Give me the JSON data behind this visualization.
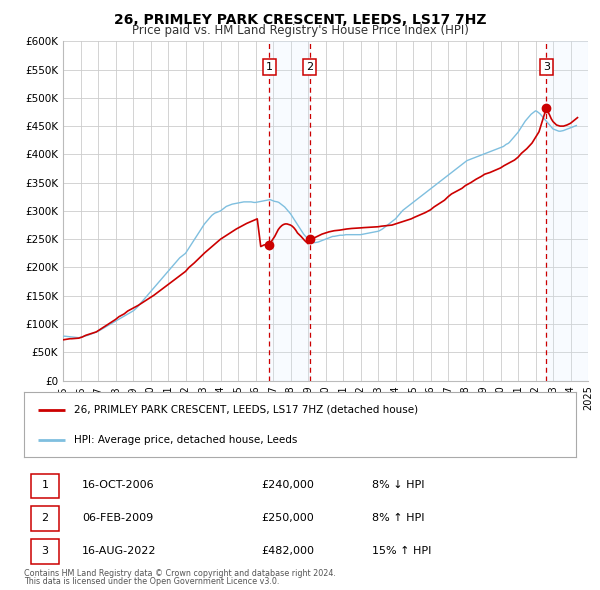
{
  "title": "26, PRIMLEY PARK CRESCENT, LEEDS, LS17 7HZ",
  "subtitle": "Price paid vs. HM Land Registry's House Price Index (HPI)",
  "xlim": [
    1995,
    2025
  ],
  "ylim": [
    0,
    600000
  ],
  "yticks": [
    0,
    50000,
    100000,
    150000,
    200000,
    250000,
    300000,
    350000,
    400000,
    450000,
    500000,
    550000,
    600000
  ],
  "ytick_labels": [
    "£0",
    "£50K",
    "£100K",
    "£150K",
    "£200K",
    "£250K",
    "£300K",
    "£350K",
    "£400K",
    "£450K",
    "£500K",
    "£550K",
    "£600K"
  ],
  "hpi_color": "#7fbfdf",
  "price_color": "#cc0000",
  "marker_color": "#cc0000",
  "bg_color": "#ffffff",
  "grid_color": "#cccccc",
  "transaction_line_color": "#cc0000",
  "shade_color": "#ddeeff",
  "transactions": [
    {
      "num": 1,
      "year": 2006.79,
      "price": 240000
    },
    {
      "num": 2,
      "year": 2009.1,
      "price": 250000
    },
    {
      "num": 3,
      "year": 2022.62,
      "price": 482000
    }
  ],
  "legend_label1": "26, PRIMLEY PARK CRESCENT, LEEDS, LS17 7HZ (detached house)",
  "legend_label2": "HPI: Average price, detached house, Leeds",
  "footer1": "Contains HM Land Registry data © Crown copyright and database right 2024.",
  "footer2": "This data is licensed under the Open Government Licence v3.0.",
  "table_rows": [
    {
      "num": 1,
      "date": "16-OCT-2006",
      "price": "£240,000",
      "pct": "8% ↓ HPI"
    },
    {
      "num": 2,
      "date": "06-FEB-2009",
      "price": "£250,000",
      "pct": "8% ↑ HPI"
    },
    {
      "num": 3,
      "date": "16-AUG-2022",
      "price": "£482,000",
      "pct": "15% ↑ HPI"
    }
  ],
  "hpi_data_x": [
    1995.0,
    1995.083,
    1995.167,
    1995.25,
    1995.333,
    1995.417,
    1995.5,
    1995.583,
    1995.667,
    1995.75,
    1995.833,
    1995.917,
    1996.0,
    1996.083,
    1996.167,
    1996.25,
    1996.333,
    1996.417,
    1996.5,
    1996.583,
    1996.667,
    1996.75,
    1996.833,
    1996.917,
    1997.0,
    1997.083,
    1997.167,
    1997.25,
    1997.333,
    1997.417,
    1997.5,
    1997.583,
    1997.667,
    1997.75,
    1997.833,
    1997.917,
    1998.0,
    1998.083,
    1998.167,
    1998.25,
    1998.333,
    1998.417,
    1998.5,
    1998.583,
    1998.667,
    1998.75,
    1998.833,
    1998.917,
    1999.0,
    1999.083,
    1999.167,
    1999.25,
    1999.333,
    1999.417,
    1999.5,
    1999.583,
    1999.667,
    1999.75,
    1999.833,
    1999.917,
    2000.0,
    2000.083,
    2000.167,
    2000.25,
    2000.333,
    2000.417,
    2000.5,
    2000.583,
    2000.667,
    2000.75,
    2000.833,
    2000.917,
    2001.0,
    2001.083,
    2001.167,
    2001.25,
    2001.333,
    2001.417,
    2001.5,
    2001.583,
    2001.667,
    2001.75,
    2001.833,
    2001.917,
    2002.0,
    2002.083,
    2002.167,
    2002.25,
    2002.333,
    2002.417,
    2002.5,
    2002.583,
    2002.667,
    2002.75,
    2002.833,
    2002.917,
    2003.0,
    2003.083,
    2003.167,
    2003.25,
    2003.333,
    2003.417,
    2003.5,
    2003.583,
    2003.667,
    2003.75,
    2003.833,
    2003.917,
    2004.0,
    2004.083,
    2004.167,
    2004.25,
    2004.333,
    2004.417,
    2004.5,
    2004.583,
    2004.667,
    2004.75,
    2004.833,
    2004.917,
    2005.0,
    2005.083,
    2005.167,
    2005.25,
    2005.333,
    2005.417,
    2005.5,
    2005.583,
    2005.667,
    2005.75,
    2005.833,
    2005.917,
    2006.0,
    2006.083,
    2006.167,
    2006.25,
    2006.333,
    2006.417,
    2006.5,
    2006.583,
    2006.667,
    2006.75,
    2006.833,
    2006.917,
    2007.0,
    2007.083,
    2007.167,
    2007.25,
    2007.333,
    2007.417,
    2007.5,
    2007.583,
    2007.667,
    2007.75,
    2007.833,
    2007.917,
    2008.0,
    2008.083,
    2008.167,
    2008.25,
    2008.333,
    2008.417,
    2008.5,
    2008.583,
    2008.667,
    2008.75,
    2008.833,
    2008.917,
    2009.0,
    2009.083,
    2009.167,
    2009.25,
    2009.333,
    2009.417,
    2009.5,
    2009.583,
    2009.667,
    2009.75,
    2009.833,
    2009.917,
    2010.0,
    2010.083,
    2010.167,
    2010.25,
    2010.333,
    2010.417,
    2010.5,
    2010.583,
    2010.667,
    2010.75,
    2010.833,
    2010.917,
    2011.0,
    2011.083,
    2011.167,
    2011.25,
    2011.333,
    2011.417,
    2011.5,
    2011.583,
    2011.667,
    2011.75,
    2011.833,
    2011.917,
    2012.0,
    2012.083,
    2012.167,
    2012.25,
    2012.333,
    2012.417,
    2012.5,
    2012.583,
    2012.667,
    2012.75,
    2012.833,
    2012.917,
    2013.0,
    2013.083,
    2013.167,
    2013.25,
    2013.333,
    2013.417,
    2013.5,
    2013.583,
    2013.667,
    2013.75,
    2013.833,
    2013.917,
    2014.0,
    2014.083,
    2014.167,
    2014.25,
    2014.333,
    2014.417,
    2014.5,
    2014.583,
    2014.667,
    2014.75,
    2014.833,
    2014.917,
    2015.0,
    2015.083,
    2015.167,
    2015.25,
    2015.333,
    2015.417,
    2015.5,
    2015.583,
    2015.667,
    2015.75,
    2015.833,
    2015.917,
    2016.0,
    2016.083,
    2016.167,
    2016.25,
    2016.333,
    2016.417,
    2016.5,
    2016.583,
    2016.667,
    2016.75,
    2016.833,
    2016.917,
    2017.0,
    2017.083,
    2017.167,
    2017.25,
    2017.333,
    2017.417,
    2017.5,
    2017.583,
    2017.667,
    2017.75,
    2017.833,
    2017.917,
    2018.0,
    2018.083,
    2018.167,
    2018.25,
    2018.333,
    2018.417,
    2018.5,
    2018.583,
    2018.667,
    2018.75,
    2018.833,
    2018.917,
    2019.0,
    2019.083,
    2019.167,
    2019.25,
    2019.333,
    2019.417,
    2019.5,
    2019.583,
    2019.667,
    2019.75,
    2019.833,
    2019.917,
    2020.0,
    2020.083,
    2020.167,
    2020.25,
    2020.333,
    2020.417,
    2020.5,
    2020.583,
    2020.667,
    2020.75,
    2020.833,
    2020.917,
    2021.0,
    2021.083,
    2021.167,
    2021.25,
    2021.333,
    2021.417,
    2021.5,
    2021.583,
    2021.667,
    2021.75,
    2021.833,
    2021.917,
    2022.0,
    2022.083,
    2022.167,
    2022.25,
    2022.333,
    2022.417,
    2022.5,
    2022.583,
    2022.667,
    2022.75,
    2022.833,
    2022.917,
    2023.0,
    2023.083,
    2023.167,
    2023.25,
    2023.333,
    2023.417,
    2023.5,
    2023.583,
    2023.667,
    2023.75,
    2023.833,
    2023.917,
    2024.0,
    2024.083,
    2024.167,
    2024.25,
    2024.333
  ],
  "hpi_data_y": [
    78000,
    78500,
    78200,
    77800,
    77500,
    77200,
    77000,
    76800,
    76500,
    76200,
    76000,
    75800,
    76500,
    77000,
    77800,
    78500,
    79200,
    80000,
    81000,
    82000,
    83000,
    84000,
    85000,
    86000,
    87000,
    88500,
    90000,
    91500,
    93000,
    94500,
    96000,
    97500,
    99000,
    100500,
    102000,
    103500,
    105000,
    106500,
    108000,
    109500,
    111000,
    112500,
    114000,
    115500,
    117000,
    118500,
    120000,
    121500,
    123000,
    125000,
    127500,
    130000,
    133000,
    136000,
    139000,
    142000,
    145000,
    148000,
    151000,
    154000,
    157000,
    160000,
    163000,
    166000,
    169000,
    172000,
    175000,
    178000,
    181000,
    184000,
    187000,
    190000,
    193000,
    196000,
    199000,
    202000,
    205000,
    208000,
    211000,
    214000,
    217000,
    219000,
    221000,
    223000,
    225000,
    229000,
    233000,
    237000,
    241000,
    245000,
    249000,
    253000,
    257000,
    261000,
    265000,
    269000,
    273000,
    277000,
    280000,
    283000,
    286000,
    289000,
    292000,
    294000,
    296000,
    297000,
    298000,
    299000,
    300000,
    302000,
    304000,
    306000,
    308000,
    309000,
    310000,
    311000,
    312000,
    312500,
    313000,
    313500,
    314000,
    314500,
    315000,
    315500,
    316000,
    316000,
    316000,
    316000,
    316000,
    316000,
    315500,
    315000,
    315000,
    315500,
    316000,
    316500,
    317000,
    317500,
    318000,
    318500,
    319000,
    319500,
    320000,
    319000,
    318000,
    317000,
    316500,
    316000,
    315000,
    313000,
    311000,
    309000,
    307000,
    304000,
    301000,
    298000,
    295000,
    291000,
    287000,
    283000,
    279000,
    275000,
    271000,
    267000,
    263000,
    259000,
    256000,
    253000,
    250000,
    248000,
    246000,
    245000,
    244000,
    244000,
    244500,
    245000,
    246000,
    247000,
    248000,
    249000,
    250000,
    251000,
    252000,
    253000,
    254000,
    255000,
    255000,
    255500,
    256000,
    256500,
    257000,
    257000,
    257000,
    257500,
    258000,
    258000,
    258000,
    258000,
    258000,
    258000,
    258000,
    258000,
    258000,
    258000,
    258000,
    258500,
    259000,
    259500,
    260000,
    260500,
    261000,
    261500,
    262000,
    262500,
    263000,
    263500,
    264000,
    265000,
    266500,
    268000,
    270000,
    272000,
    274000,
    276000,
    278000,
    280000,
    282000,
    284000,
    286000,
    289000,
    292000,
    295000,
    298000,
    301000,
    303000,
    305000,
    307000,
    309000,
    311000,
    313000,
    315000,
    317000,
    319000,
    321000,
    323000,
    325000,
    327000,
    329000,
    331000,
    333000,
    335000,
    337000,
    339000,
    341000,
    343000,
    345000,
    347000,
    349000,
    351000,
    353000,
    355000,
    357000,
    359000,
    361000,
    363000,
    365000,
    367000,
    369000,
    371000,
    373000,
    375000,
    377000,
    379000,
    381000,
    383000,
    385000,
    387000,
    389000,
    390000,
    391000,
    392000,
    393000,
    394000,
    395000,
    396000,
    397000,
    398000,
    399000,
    400000,
    401000,
    402000,
    403000,
    404000,
    405000,
    406000,
    407000,
    408000,
    409000,
    410000,
    411000,
    412000,
    413000,
    414000,
    416000,
    418000,
    419000,
    421000,
    424000,
    427000,
    430000,
    433000,
    436000,
    439000,
    443000,
    447000,
    451000,
    455000,
    459000,
    462000,
    465000,
    468000,
    471000,
    473000,
    475000,
    477000,
    476000,
    474000,
    472000,
    469000,
    466000,
    463000,
    460000,
    457000,
    454000,
    451000,
    448000,
    445000,
    444000,
    443000,
    442000,
    441000,
    441000,
    441500,
    442000,
    443000,
    444000,
    445000,
    446000,
    447000,
    448000,
    449000,
    450000,
    451000,
    452000,
    453000,
    454000,
    455000,
    456000,
    457000,
    458000,
    459000,
    460000,
    461000,
    462000,
    463000
  ],
  "price_data_x": [
    1995.0,
    1995.1,
    1995.2,
    1995.3,
    1995.4,
    1995.5,
    1995.6,
    1995.7,
    1995.8,
    1995.9,
    1996.0,
    1996.1,
    1996.2,
    1996.3,
    1996.5,
    1996.7,
    1996.9,
    1997.0,
    1997.2,
    1997.4,
    1997.6,
    1997.8,
    1998.0,
    1998.2,
    1998.5,
    1998.7,
    1999.0,
    1999.3,
    1999.6,
    1999.9,
    2000.2,
    2000.5,
    2000.8,
    2001.1,
    2001.4,
    2001.7,
    2002.0,
    2002.2,
    2002.5,
    2002.8,
    2003.1,
    2003.4,
    2003.7,
    2004.0,
    2004.3,
    2004.6,
    2004.9,
    2005.2,
    2005.5,
    2005.8,
    2006.1,
    2006.3,
    2006.5,
    2006.79,
    2006.85,
    2006.95,
    2007.1,
    2007.2,
    2007.3,
    2007.4,
    2007.5,
    2007.6,
    2007.7,
    2007.8,
    2007.9,
    2008.0,
    2008.1,
    2008.2,
    2008.3,
    2008.4,
    2008.6,
    2008.8,
    2009.0,
    2009.1,
    2009.2,
    2009.4,
    2009.6,
    2009.8,
    2010.0,
    2010.2,
    2010.5,
    2010.8,
    2011.0,
    2011.2,
    2011.5,
    2011.8,
    2012.0,
    2012.2,
    2012.5,
    2012.8,
    2013.0,
    2013.2,
    2013.5,
    2013.8,
    2014.0,
    2014.3,
    2014.6,
    2014.9,
    2015.1,
    2015.4,
    2015.7,
    2016.0,
    2016.2,
    2016.5,
    2016.8,
    2017.0,
    2017.2,
    2017.5,
    2017.8,
    2018.0,
    2018.3,
    2018.6,
    2018.9,
    2019.1,
    2019.4,
    2019.7,
    2020.0,
    2020.2,
    2020.5,
    2020.8,
    2021.0,
    2021.2,
    2021.5,
    2021.8,
    2022.0,
    2022.2,
    2022.4,
    2022.62,
    2022.7,
    2022.8,
    2022.9,
    2023.0,
    2023.1,
    2023.2,
    2023.4,
    2023.6,
    2023.8,
    2024.0,
    2024.2,
    2024.4
  ],
  "price_data_y": [
    72000,
    72500,
    73000,
    73500,
    74000,
    74000,
    74200,
    74500,
    74800,
    75000,
    76000,
    77000,
    78500,
    80000,
    82000,
    84000,
    86000,
    88000,
    92000,
    96000,
    100000,
    104000,
    108000,
    113000,
    118000,
    123000,
    128000,
    133000,
    139000,
    145000,
    151000,
    158000,
    165000,
    172000,
    179000,
    186000,
    193000,
    200000,
    208000,
    217000,
    226000,
    234000,
    242000,
    250000,
    256000,
    262000,
    268000,
    273000,
    278000,
    282000,
    286000,
    237000,
    240000,
    240000,
    243000,
    248000,
    255000,
    261000,
    267000,
    271000,
    274000,
    276000,
    277000,
    277000,
    276000,
    275000,
    273000,
    270000,
    266000,
    261000,
    255000,
    248000,
    242000,
    250000,
    251000,
    253000,
    256000,
    259000,
    261000,
    263000,
    265000,
    266000,
    267000,
    268000,
    269000,
    269500,
    270000,
    270500,
    271000,
    271500,
    272000,
    273000,
    274000,
    275000,
    277000,
    280000,
    283000,
    286000,
    289000,
    293000,
    297000,
    302000,
    307000,
    313000,
    319000,
    325000,
    330000,
    335000,
    340000,
    345000,
    350000,
    356000,
    361000,
    365000,
    368000,
    372000,
    376000,
    380000,
    385000,
    390000,
    395000,
    402000,
    410000,
    420000,
    430000,
    440000,
    460000,
    482000,
    476000,
    470000,
    463000,
    458000,
    455000,
    452000,
    450000,
    450000,
    452000,
    455000,
    460000,
    465000
  ]
}
